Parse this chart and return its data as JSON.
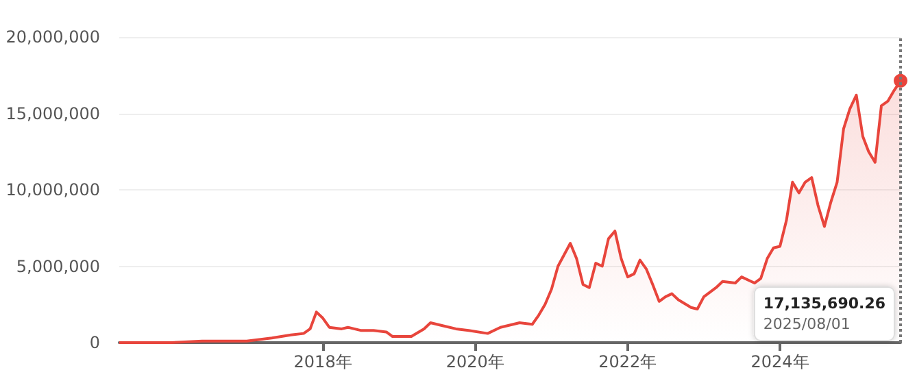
{
  "chart_data": {
    "type": "area",
    "x": [
      "2015-05",
      "2016-01",
      "2016-06",
      "2017-01",
      "2017-05",
      "2017-08",
      "2017-10",
      "2017-11",
      "2017-12",
      "2018-01",
      "2018-02",
      "2018-04",
      "2018-05",
      "2018-07",
      "2018-09",
      "2018-11",
      "2018-12",
      "2019-03",
      "2019-05",
      "2019-06",
      "2019-08",
      "2019-10",
      "2019-12",
      "2020-03",
      "2020-05",
      "2020-08",
      "2020-10",
      "2020-11",
      "2020-12",
      "2021-01",
      "2021-02",
      "2021-04",
      "2021-05",
      "2021-06",
      "2021-07",
      "2021-08",
      "2021-09",
      "2021-10",
      "2021-11",
      "2021-12",
      "2022-01",
      "2022-02",
      "2022-03",
      "2022-04",
      "2022-05",
      "2022-06",
      "2022-07",
      "2022-08",
      "2022-09",
      "2022-11",
      "2022-12",
      "2023-01",
      "2023-03",
      "2023-04",
      "2023-06",
      "2023-07",
      "2023-09",
      "2023-10",
      "2023-11",
      "2023-12",
      "2024-01",
      "2024-02",
      "2024-03",
      "2024-04",
      "2024-05",
      "2024-06",
      "2024-07",
      "2024-08",
      "2024-09",
      "2024-10",
      "2024-11",
      "2024-12",
      "2025-01",
      "2025-02",
      "2025-03",
      "2025-04",
      "2025-05",
      "2025-06",
      "2025-07",
      "2025-08-01"
    ],
    "series": [
      {
        "color": "#e8453c",
        "values": [
          0,
          0,
          100000,
          100000,
          300000,
          500000,
          600000,
          900000,
          2000000,
          1600000,
          1000000,
          900000,
          1000000,
          800000,
          800000,
          700000,
          400000,
          400000,
          900000,
          1300000,
          1100000,
          900000,
          800000,
          600000,
          1000000,
          1300000,
          1200000,
          1800000,
          2500000,
          3500000,
          5000000,
          6500000,
          5500000,
          3800000,
          3600000,
          5200000,
          5000000,
          6800000,
          7300000,
          5500000,
          4300000,
          4500000,
          5400000,
          4800000,
          3800000,
          2700000,
          3000000,
          3200000,
          2800000,
          2300000,
          2200000,
          3000000,
          3600000,
          4000000,
          3900000,
          4300000,
          3900000,
          4200000,
          5500000,
          6200000,
          6300000,
          8000000,
          10500000,
          9800000,
          10500000,
          10800000,
          9000000,
          7600000,
          9200000,
          10500000,
          14000000,
          15300000,
          16200000,
          13500000,
          12500000,
          11800000,
          15500000,
          15800000,
          16500000,
          17135690.26
        ]
      }
    ],
    "xlim": [
      "2015-05",
      "2025-08-01"
    ],
    "xticks": [
      {
        "value": "2018-01",
        "label": "2018年"
      },
      {
        "value": "2020-01",
        "label": "2020年"
      },
      {
        "value": "2022-01",
        "label": "2022年"
      },
      {
        "value": "2024-01",
        "label": "2024年"
      }
    ],
    "ylim": [
      0,
      20000000
    ],
    "yticks": [
      0,
      {
        "value": 5000000,
        "label": "5,000,000"
      },
      {
        "value": 10000000,
        "label": "10,000,000"
      },
      {
        "value": 15000000,
        "label": "15,000,000"
      },
      {
        "value": 20000000,
        "label": "20,000,000"
      }
    ],
    "grid": "y",
    "marker": "none",
    "line_style": "solid",
    "ref_lines": [
      {
        "axis": "x",
        "value": "2025-08-01",
        "label": null,
        "color": "#777777",
        "line_style": "dotted"
      }
    ],
    "annotations": [
      "17,135,690.26\n2025/08/01"
    ]
  }
}
